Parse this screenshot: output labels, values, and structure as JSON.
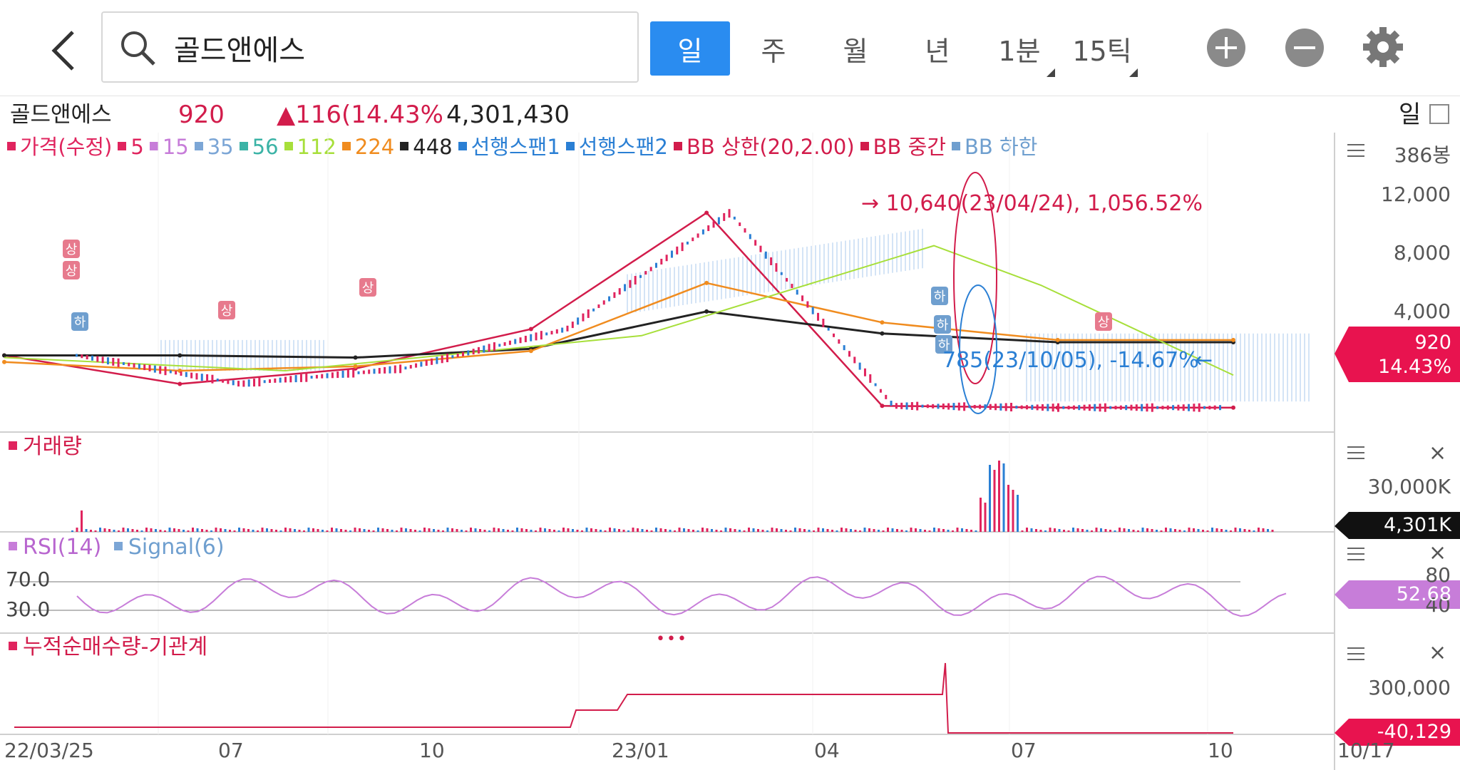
{
  "search": {
    "query": "골드앤에스"
  },
  "periods": [
    {
      "label": "일",
      "active": true
    },
    {
      "label": "주",
      "active": false
    },
    {
      "label": "월",
      "active": false
    },
    {
      "label": "년",
      "active": false
    },
    {
      "label": "1분",
      "active": false
    },
    {
      "label": "15틱",
      "active": false
    }
  ],
  "info": {
    "name": "골드앤에스",
    "price": "920",
    "change": "▲116(14.43%",
    "volume": "4,301,430",
    "period": "일"
  },
  "legend": [
    {
      "label": "가격(수정)",
      "color": "#e0245e"
    },
    {
      "label": "5",
      "color": "#e0245e"
    },
    {
      "label": "15",
      "color": "#c77dd9"
    },
    {
      "label": "35",
      "color": "#7ca6d6"
    },
    {
      "label": "56",
      "color": "#3bb3a6"
    },
    {
      "label": "112",
      "color": "#a7df3a"
    },
    {
      "label": "224",
      "color": "#f08c1f"
    },
    {
      "label": "448",
      "color": "#222222"
    },
    {
      "label": "선행스팬1",
      "color": "#2a7fd4"
    },
    {
      "label": "선행스팬2",
      "color": "#2a7fd4"
    },
    {
      "label": "BB 상한(20,2.00)",
      "color": "#d21c4b"
    },
    {
      "label": "BB 중간",
      "color": "#d21c4b"
    },
    {
      "label": "BB 하한",
      "color": "#6f9fcf"
    }
  ],
  "price_pane": {
    "axis": [
      "386봉",
      "12,000",
      "8,000",
      "4,000"
    ],
    "high_note": "→ 10,640(23/04/24), 1,056.52%",
    "low_note": "785(23/10/05), -14.67%",
    "low_arrow": "←",
    "tag_price": "920",
    "tag_pct": "14.43%",
    "markers_up": "상",
    "markers_down": "하"
  },
  "volume_pane": {
    "label": "거래량",
    "axis": "30,000K",
    "tag": "4,301K"
  },
  "rsi_pane": {
    "label_rsi": "RSI(14)",
    "label_signal": "Signal(6)",
    "level_high": "70.0",
    "level_low": "30.0",
    "axis_top": "80",
    "axis_bottom": "40",
    "tag": "52.68"
  },
  "inst_pane": {
    "label": "누적순매수량-기관계",
    "axis": "300,000",
    "tag": "-40,129",
    "more": "•••"
  },
  "x_axis": [
    "22/03/25",
    "07",
    "10",
    "23/01",
    "04",
    "07",
    "10",
    "10/17"
  ],
  "chart_data": {
    "type": "line",
    "title": "",
    "x": [
      "22/03/25",
      "22/07",
      "22/10",
      "23/01",
      "23/04",
      "23/07",
      "23/10",
      "23/10/17"
    ],
    "series": [
      {
        "name": "가격(수정)",
        "values": [
          3300,
          2000,
          2700,
          4500,
          9800,
          1000,
          920,
          920
        ]
      },
      {
        "name": "448",
        "values": [
          3300,
          3300,
          3200,
          3600,
          5300,
          4300,
          3900,
          3900
        ]
      },
      {
        "name": "224",
        "values": [
          3000,
          2600,
          2800,
          3500,
          6600,
          4800,
          4000,
          4000
        ]
      }
    ],
    "ylim": [
      0,
      13000
    ],
    "price_scale": [
      12000,
      8000,
      4000
    ],
    "volume": {
      "name": "거래량",
      "max_k": 38000,
      "last_k": 4301
    },
    "rsi": {
      "name": "RSI(14)",
      "last": 52.68,
      "levels": [
        70,
        30
      ]
    },
    "institution": {
      "name": "누적순매수량-기관계",
      "last": -40129
    },
    "colors": {
      "up": "#e0245e",
      "down": "#2a7fd4",
      "ma448": "#222222",
      "ma224": "#f08c1f",
      "ma112": "#a7df3a"
    }
  }
}
